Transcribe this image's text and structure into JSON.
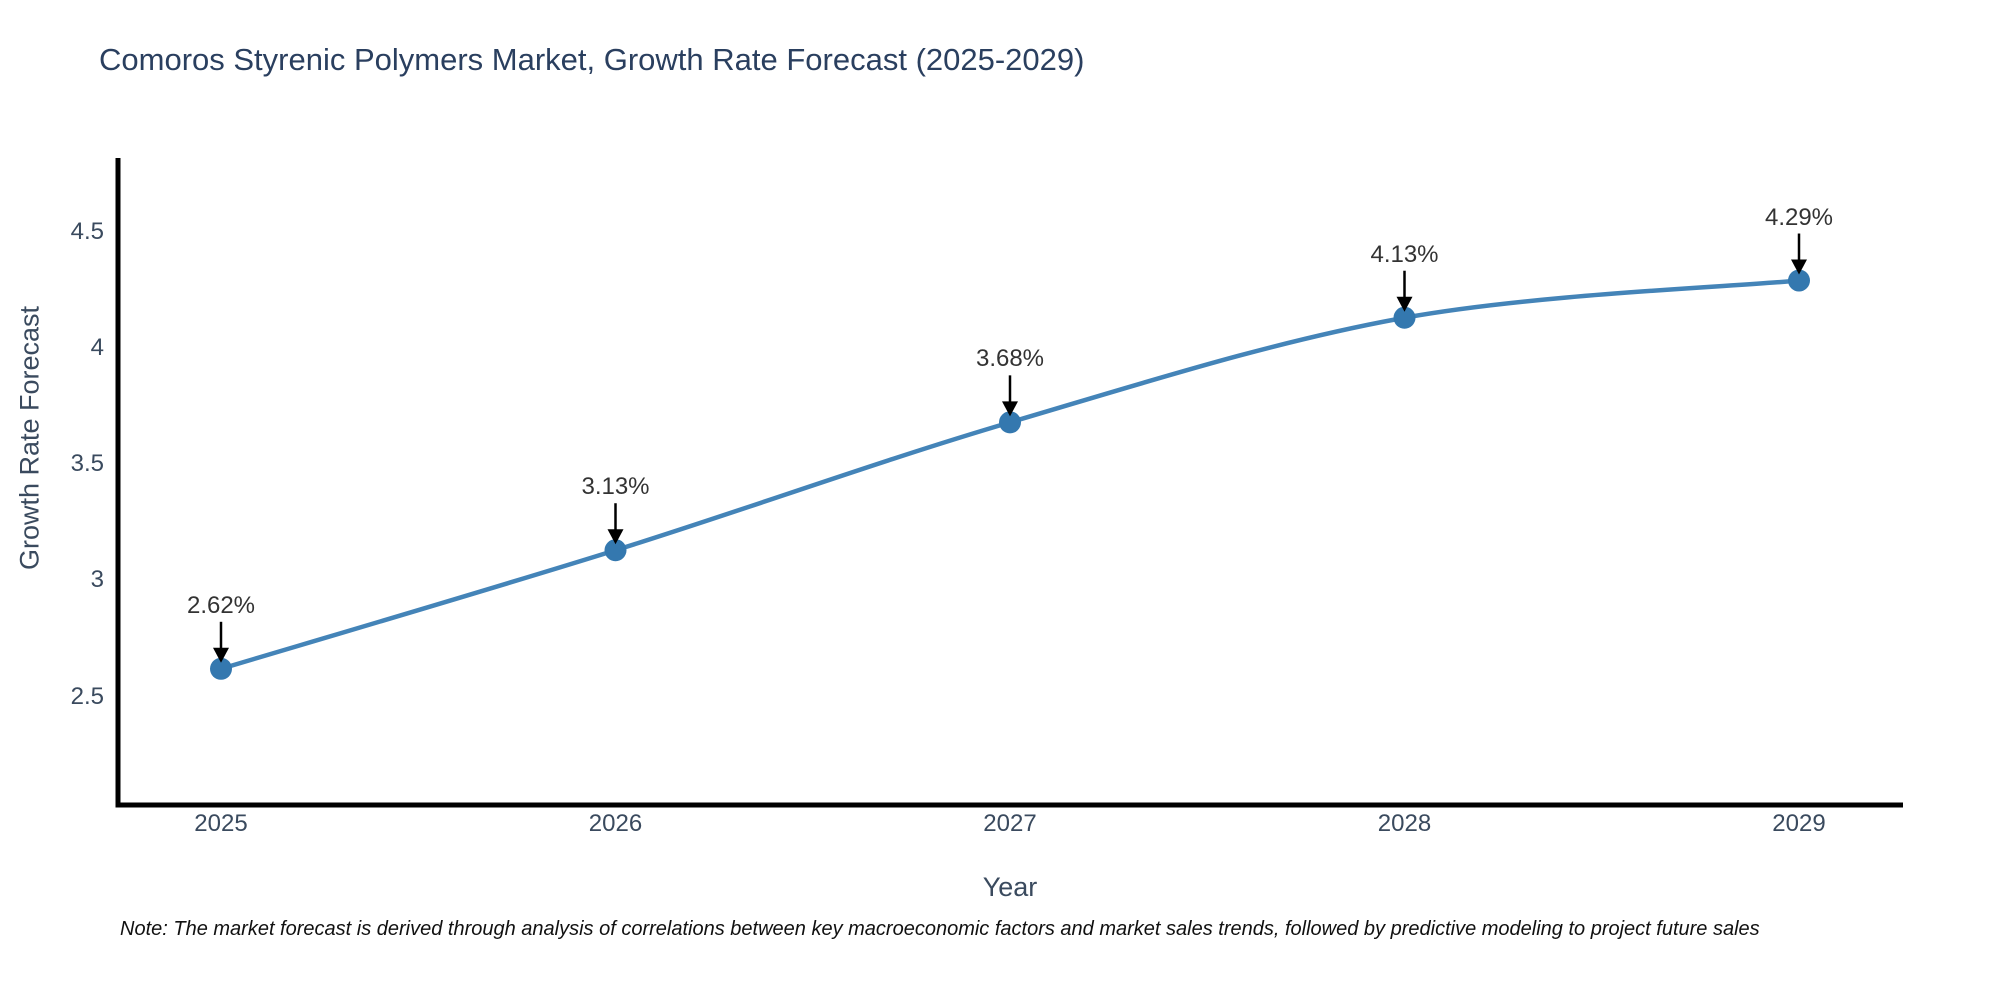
{
  "note": {
    "text": "Note: The market forecast is derived through analysis of correlations between key macroeconomic factors and market sales trends, followed by predictive modeling to project future sales"
  },
  "chart_data": {
    "type": "line",
    "title": "Comoros Styrenic Polymers Market, Growth Rate Forecast (2025-2029)",
    "xlabel": "Year",
    "ylabel": "Growth Rate Forecast",
    "x": [
      2025,
      2026,
      2027,
      2028,
      2029
    ],
    "values": [
      2.62,
      3.13,
      3.68,
      4.13,
      4.29
    ],
    "point_labels": [
      "2.62%",
      "3.13%",
      "3.68%",
      "4.13%",
      "4.29%"
    ],
    "x_tick_labels": [
      "2025",
      "2026",
      "2027",
      "2028",
      "2029"
    ],
    "y_ticks": [
      2.5,
      3,
      3.5,
      4,
      4.5
    ],
    "y_tick_labels": [
      "2.5",
      "3",
      "3.5",
      "4",
      "4.5"
    ],
    "ylim": [
      2.04,
      4.81
    ],
    "xlim": [
      2024.74,
      2029.26
    ],
    "grid": false,
    "legend": "none",
    "smooth_line": true,
    "line_color": "#4484b8",
    "marker_color": "#3478af",
    "arrow_color": "#000000",
    "axis_color": "#000000",
    "title_color": "#2a3f5f",
    "tick_color": "#3a4a5e"
  }
}
